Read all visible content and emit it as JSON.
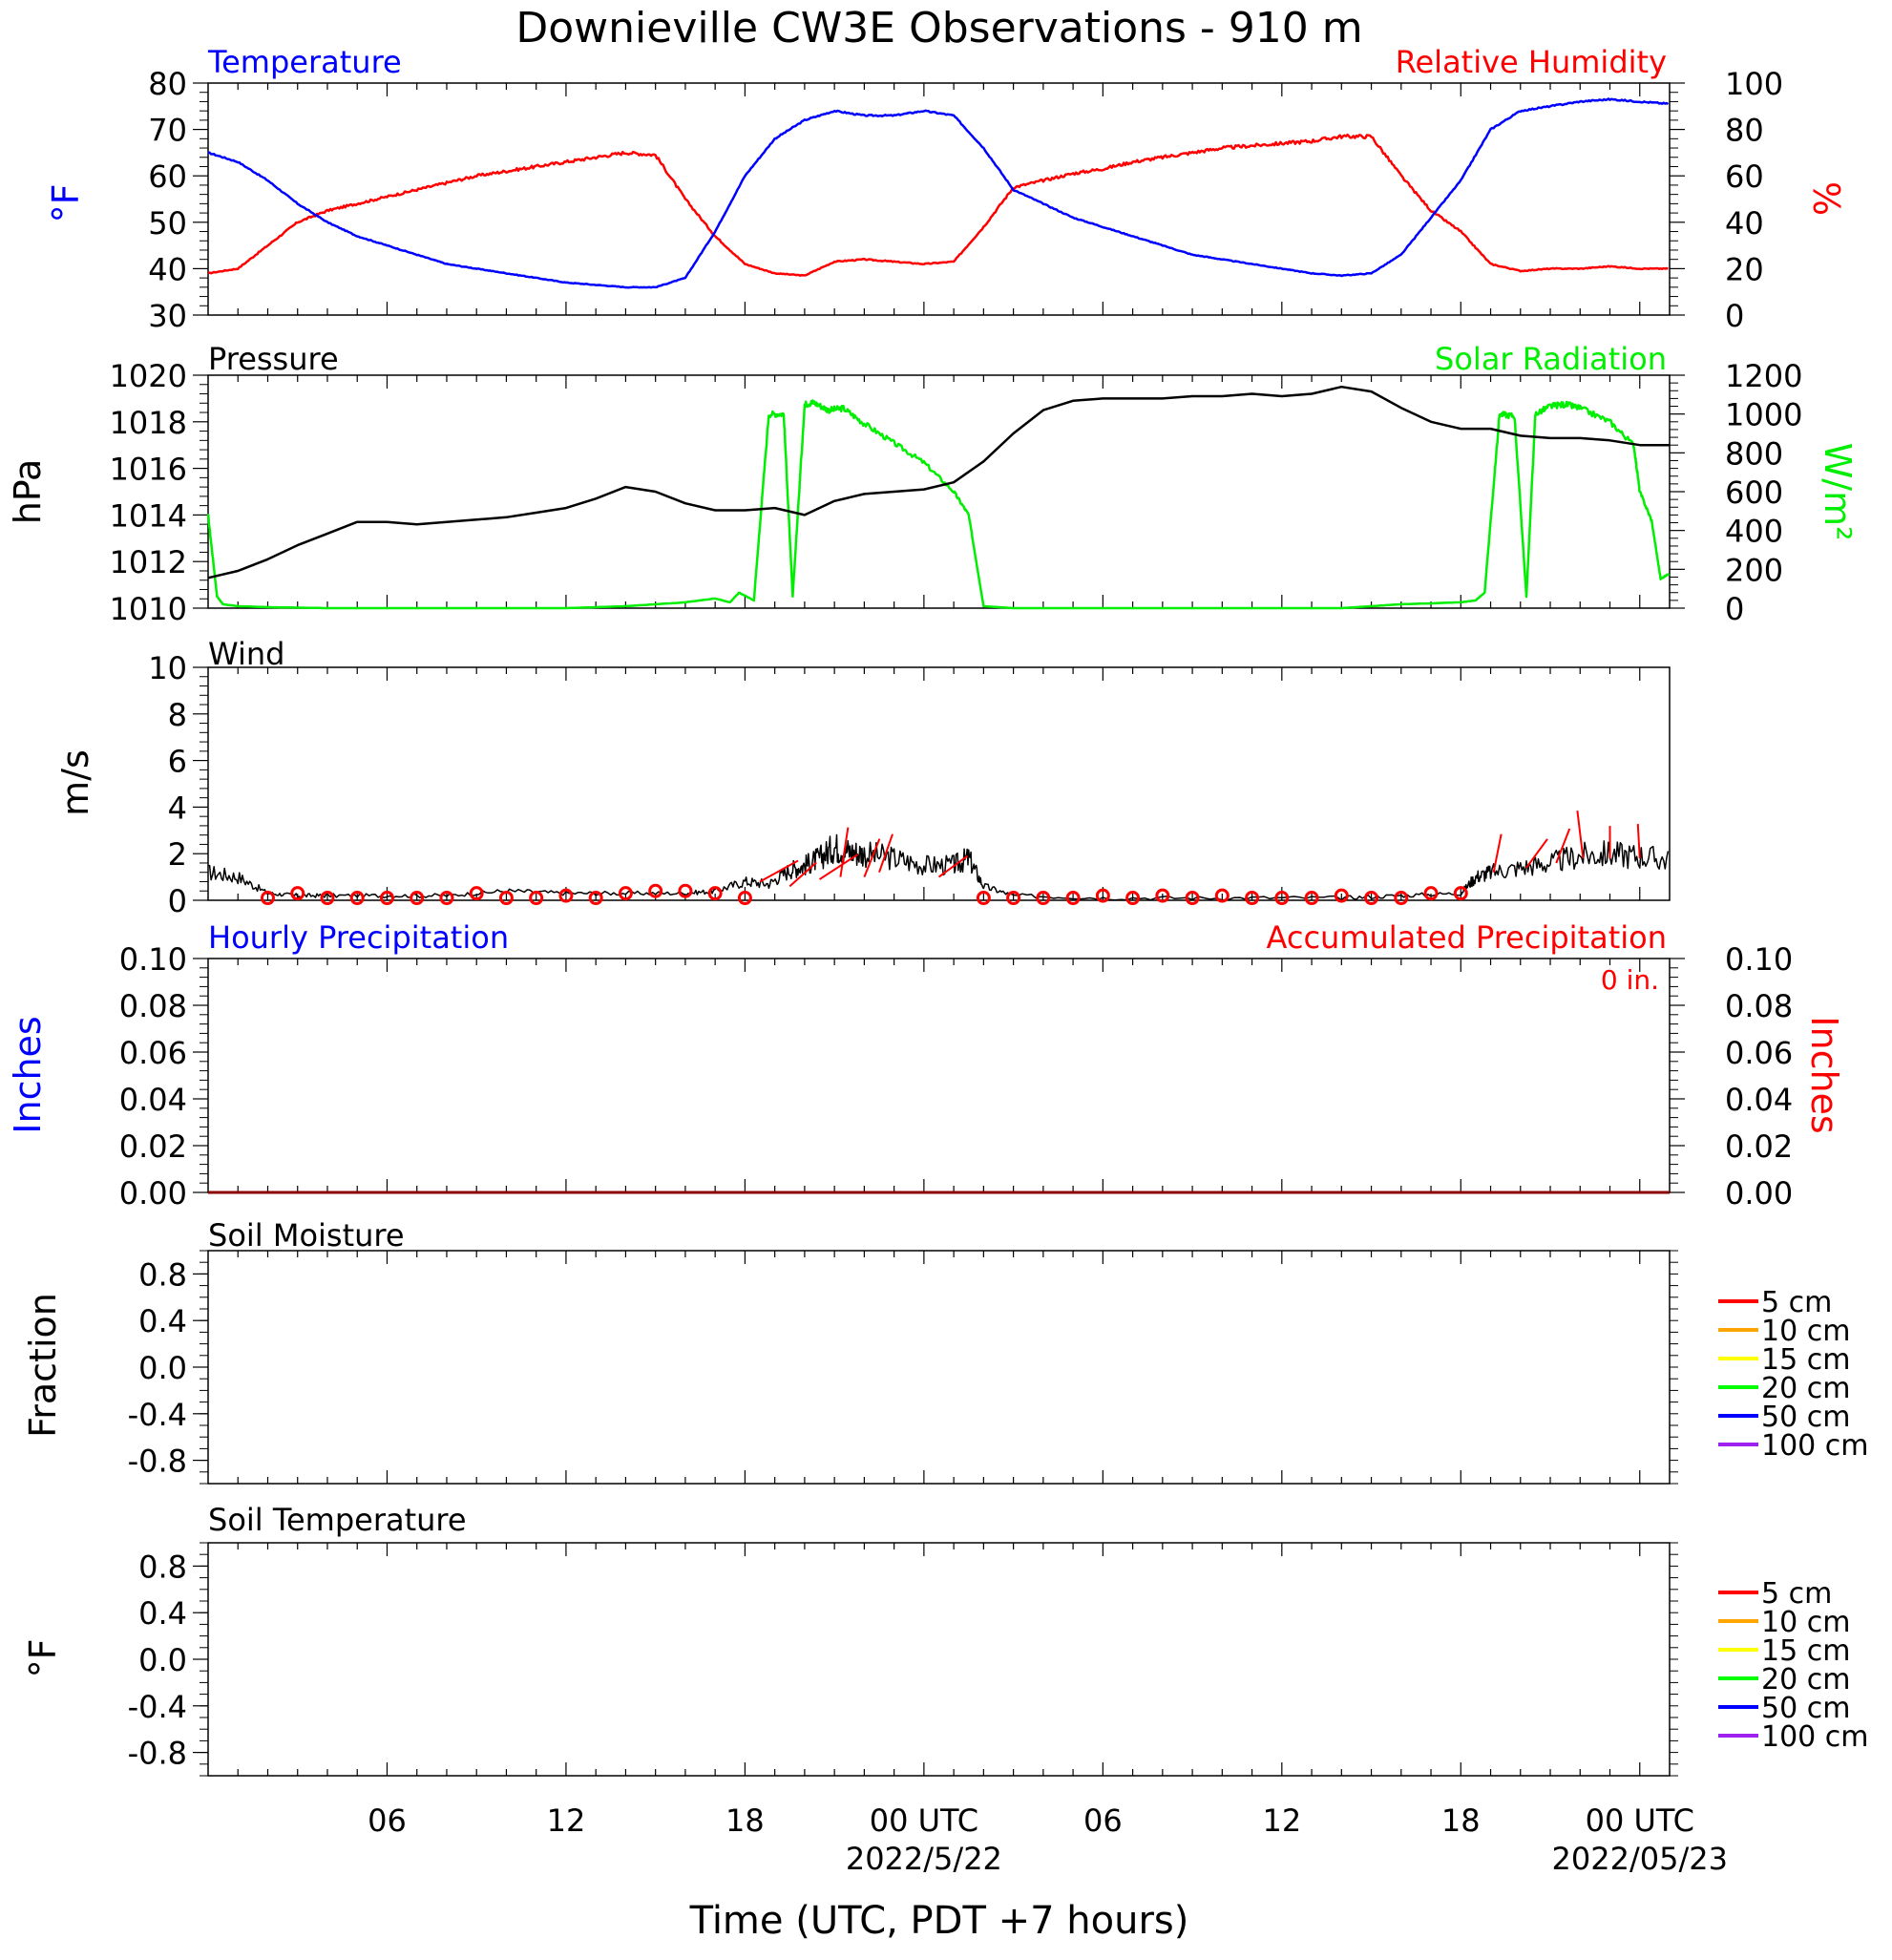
{
  "title": "Downieville CW3E Observations - 910 m",
  "xlabel": "Time (UTC, PDT +7 hours)",
  "colors": {
    "temperature": "#0000ff",
    "humidity": "#ff0000",
    "pressure": "#000000",
    "solar": "#00ee00",
    "wind": "#000000",
    "barb": "#ff0000",
    "precip": "#8b0000"
  },
  "x_ticks": [
    {
      "hour": 6,
      "label": "06",
      "date": ""
    },
    {
      "hour": 12,
      "label": "12",
      "date": ""
    },
    {
      "hour": 18,
      "label": "18",
      "date": ""
    },
    {
      "hour": 24,
      "label": "00 UTC",
      "date": "2022/5/22"
    },
    {
      "hour": 30,
      "label": "06",
      "date": ""
    },
    {
      "hour": 36,
      "label": "12",
      "date": ""
    },
    {
      "hour": 42,
      "label": "18",
      "date": ""
    },
    {
      "hour": 48,
      "label": "00 UTC",
      "date": "2022/05/23"
    }
  ],
  "panels": {
    "temp_rh": {
      "left_title": "Temperature",
      "right_title": "Relative Humidity",
      "left_unit": "°F",
      "right_unit": "%",
      "left_ticks": [
        "30",
        "40",
        "50",
        "60",
        "70",
        "80"
      ],
      "right_ticks": [
        "0",
        "20",
        "40",
        "60",
        "80",
        "100"
      ]
    },
    "pressure_solar": {
      "left_title": "Pressure",
      "right_title": "Solar Radiation",
      "left_unit": "hPa",
      "right_unit": "W/m²",
      "left_ticks": [
        "1010",
        "1012",
        "1014",
        "1016",
        "1018",
        "1020"
      ],
      "right_ticks": [
        "0",
        "200",
        "400",
        "600",
        "800",
        "1000",
        "1200"
      ]
    },
    "wind": {
      "left_title": "Wind",
      "left_unit": "m/s",
      "left_ticks": [
        "0",
        "2",
        "4",
        "6",
        "8",
        "10"
      ]
    },
    "precip": {
      "left_title": "Hourly Precipitation",
      "right_title": "Accumulated Precipitation",
      "annotation": "0 in.",
      "left_unit": "Inches",
      "right_unit": "Inches",
      "left_ticks": [
        "0.00",
        "0.02",
        "0.04",
        "0.06",
        "0.08",
        "0.10"
      ],
      "right_ticks": [
        "0.00",
        "0.02",
        "0.04",
        "0.06",
        "0.08",
        "0.10"
      ]
    },
    "soil_moisture": {
      "left_title": "Soil Moisture",
      "left_unit": "Fraction",
      "left_ticks": [
        "-0.8",
        "-0.4",
        "0.0",
        "0.4",
        "0.8"
      ]
    },
    "soil_temp": {
      "left_title": "Soil Temperature",
      "left_unit": "°F",
      "left_ticks": [
        "-0.8",
        "-0.4",
        "0.0",
        "0.4",
        "0.8"
      ]
    }
  },
  "legend": [
    {
      "label": "5 cm",
      "color": "#ff0000"
    },
    {
      "label": "10 cm",
      "color": "#ffa500"
    },
    {
      "label": "15 cm",
      "color": "#ffff00"
    },
    {
      "label": "20 cm",
      "color": "#00ff00"
    },
    {
      "label": "50 cm",
      "color": "#0000ff"
    },
    {
      "label": "100 cm",
      "color": "#a020f0"
    }
  ],
  "chart_data": [
    {
      "type": "line",
      "title": "Temperature",
      "xlabel": "Time (UTC, PDT +7 hours)",
      "ylabel": "°F",
      "xlim": [
        0,
        49
      ],
      "ylim": [
        30,
        80
      ],
      "series": [
        {
          "name": "Temperature",
          "x": [
            0,
            1,
            2,
            3,
            4,
            5,
            6,
            7,
            8,
            9,
            10,
            11,
            12,
            13,
            14,
            15,
            16,
            17,
            18,
            19,
            20,
            21,
            22,
            23,
            24,
            25,
            26,
            27,
            28,
            29,
            30,
            31,
            32,
            33,
            34,
            35,
            36,
            37,
            38,
            39,
            40,
            41,
            42,
            43,
            44,
            45,
            46,
            47,
            48,
            49
          ],
          "values": [
            65,
            63,
            59,
            54,
            50,
            47,
            45,
            43,
            41,
            40,
            39,
            38,
            37,
            36.5,
            36,
            36,
            38,
            48,
            60,
            68,
            72,
            74,
            73,
            73,
            74,
            73,
            66,
            57,
            54,
            51,
            49,
            47,
            45,
            43,
            42,
            41,
            40,
            39,
            38.5,
            39,
            43,
            51,
            59,
            70,
            74,
            75,
            76,
            76.5,
            76,
            75.5
          ]
        }
      ]
    },
    {
      "type": "line",
      "title": "Relative Humidity",
      "ylabel": "%",
      "xlim": [
        0,
        49
      ],
      "ylim": [
        0,
        100
      ],
      "series": [
        {
          "name": "Relative Humidity",
          "x": [
            0,
            1,
            2,
            3,
            4,
            5,
            6,
            7,
            8,
            9,
            10,
            11,
            12,
            13,
            14,
            15,
            16,
            17,
            18,
            19,
            20,
            21,
            22,
            23,
            24,
            25,
            26,
            27,
            28,
            29,
            30,
            31,
            32,
            33,
            34,
            35,
            36,
            37,
            38,
            39,
            40,
            41,
            42,
            43,
            44,
            45,
            46,
            47,
            48,
            49
          ],
          "values": [
            18,
            20,
            30,
            40,
            45,
            48,
            51,
            54,
            57,
            60,
            62,
            64,
            66,
            68,
            70,
            69,
            50,
            34,
            22,
            18,
            17,
            23,
            24,
            23,
            22,
            23,
            38,
            55,
            58,
            61,
            63,
            66,
            68,
            70,
            72,
            73,
            74,
            75,
            77,
            77,
            60,
            45,
            36,
            22,
            19,
            20,
            20,
            21,
            20,
            20
          ]
        }
      ]
    },
    {
      "type": "line",
      "title": "Pressure",
      "ylabel": "hPa",
      "xlim": [
        0,
        49
      ],
      "ylim": [
        1010,
        1020
      ],
      "series": [
        {
          "name": "Pressure",
          "x": [
            0,
            1,
            2,
            3,
            4,
            5,
            6,
            7,
            8,
            9,
            10,
            11,
            12,
            13,
            14,
            15,
            16,
            17,
            18,
            19,
            20,
            21,
            22,
            23,
            24,
            25,
            26,
            27,
            28,
            29,
            30,
            31,
            32,
            33,
            34,
            35,
            36,
            37,
            38,
            39,
            40,
            41,
            42,
            43,
            44,
            45,
            46,
            47,
            48,
            49
          ],
          "values": [
            1011.3,
            1011.6,
            1012.1,
            1012.7,
            1013.2,
            1013.7,
            1013.7,
            1013.6,
            1013.7,
            1013.8,
            1013.9,
            1014.1,
            1014.3,
            1014.7,
            1015.2,
            1015.0,
            1014.5,
            1014.2,
            1014.2,
            1014.3,
            1014.0,
            1014.6,
            1014.9,
            1015.0,
            1015.1,
            1015.4,
            1016.3,
            1017.5,
            1018.5,
            1018.9,
            1019.0,
            1019.0,
            1019.0,
            1019.1,
            1019.1,
            1019.2,
            1019.1,
            1019.2,
            1019.5,
            1019.3,
            1018.6,
            1018.0,
            1017.7,
            1017.7,
            1017.4,
            1017.3,
            1017.3,
            1017.2,
            1017.0,
            1017.0
          ]
        }
      ]
    },
    {
      "type": "line",
      "title": "Solar Radiation",
      "ylabel": "W/m²",
      "xlim": [
        0,
        49
      ],
      "ylim": [
        0,
        1200
      ],
      "series": [
        {
          "name": "Solar Radiation",
          "x": [
            0,
            0.3,
            0.5,
            1,
            2,
            4,
            8,
            12,
            14,
            16,
            17,
            17.5,
            17.8,
            18.3,
            18.8,
            19.3,
            19.6,
            20,
            20.3,
            20.8,
            21.3,
            22,
            23,
            24,
            25,
            25.5,
            26,
            27,
            28,
            30,
            34,
            38,
            40,
            42,
            42.5,
            42.8,
            43.3,
            43.8,
            44.2,
            44.5,
            45,
            45.5,
            46,
            47,
            47.8,
            48,
            48.4,
            48.7,
            49
          ],
          "values": [
            480,
            60,
            20,
            10,
            5,
            0,
            0,
            0,
            10,
            30,
            50,
            30,
            80,
            40,
            1000,
            1000,
            60,
            1050,
            1060,
            1020,
            1030,
            950,
            850,
            750,
            600,
            480,
            10,
            0,
            0,
            0,
            0,
            0,
            20,
            30,
            40,
            80,
            1000,
            990,
            60,
            1000,
            1040,
            1050,
            1030,
            960,
            840,
            600,
            450,
            150,
            180
          ]
        }
      ]
    },
    {
      "type": "line",
      "title": "Wind",
      "ylabel": "m/s",
      "xlim": [
        0,
        49
      ],
      "ylim": [
        0,
        10
      ],
      "series": [
        {
          "name": "Wind speed",
          "x": [
            0,
            1,
            2,
            3,
            4,
            6,
            8,
            10,
            12,
            14,
            16,
            17,
            18,
            18.8,
            19.5,
            20,
            20.5,
            21,
            21.5,
            22,
            23,
            24,
            25,
            25.5,
            26,
            27,
            30,
            34,
            38,
            40,
            42,
            42.5,
            43,
            44,
            45,
            46,
            47,
            48,
            49
          ],
          "values": [
            1.2,
            1.0,
            0.3,
            0.2,
            0.2,
            0.2,
            0.2,
            0.4,
            0.3,
            0.3,
            0.3,
            0.4,
            0.8,
            0.7,
            1.3,
            1.5,
            1.8,
            2.3,
            2.1,
            2.0,
            1.8,
            1.5,
            1.5,
            1.8,
            0.6,
            0.2,
            0.1,
            0.1,
            0.1,
            0.2,
            0.3,
            1.0,
            1.2,
            1.4,
            1.6,
            1.9,
            2.0,
            1.9,
            1.7
          ]
        }
      ]
    },
    {
      "type": "scatter",
      "title": "Wind",
      "xlim": [
        0,
        49
      ],
      "ylim": [
        0,
        10
      ],
      "series": [
        {
          "name": "Hourly wind markers",
          "x": [
            2,
            3,
            4,
            5,
            6,
            7,
            8,
            9,
            10,
            11,
            12,
            13,
            14,
            15,
            16,
            17,
            18,
            26,
            27,
            28,
            29,
            30,
            31,
            32,
            33,
            34,
            35,
            36,
            37,
            38,
            39,
            40,
            41,
            42
          ],
          "values": [
            0.1,
            0.3,
            0.1,
            0.1,
            0.1,
            0.1,
            0.1,
            0.3,
            0.1,
            0.1,
            0.2,
            0.1,
            0.3,
            0.4,
            0.4,
            0.3,
            0.1,
            0.1,
            0.1,
            0.1,
            0.1,
            0.2,
            0.1,
            0.2,
            0.1,
            0.2,
            0.1,
            0.1,
            0.1,
            0.2,
            0.1,
            0.1,
            0.3,
            0.3
          ]
        }
      ]
    },
    {
      "type": "line",
      "title": "Hourly Precipitation",
      "ylabel": "Inches",
      "xlim": [
        0,
        49
      ],
      "ylim": [
        0,
        0.1
      ],
      "series": [
        {
          "name": "Hourly Precipitation",
          "x": [
            0,
            49
          ],
          "values": [
            0,
            0
          ]
        }
      ]
    },
    {
      "type": "line",
      "title": "Soil Moisture",
      "ylabel": "Fraction",
      "xlim": [
        0,
        49
      ],
      "ylim": [
        -1,
        1
      ],
      "series": []
    },
    {
      "type": "line",
      "title": "Soil Temperature",
      "ylabel": "°F",
      "xlim": [
        0,
        49
      ],
      "ylim": [
        -1,
        1
      ],
      "series": []
    }
  ]
}
